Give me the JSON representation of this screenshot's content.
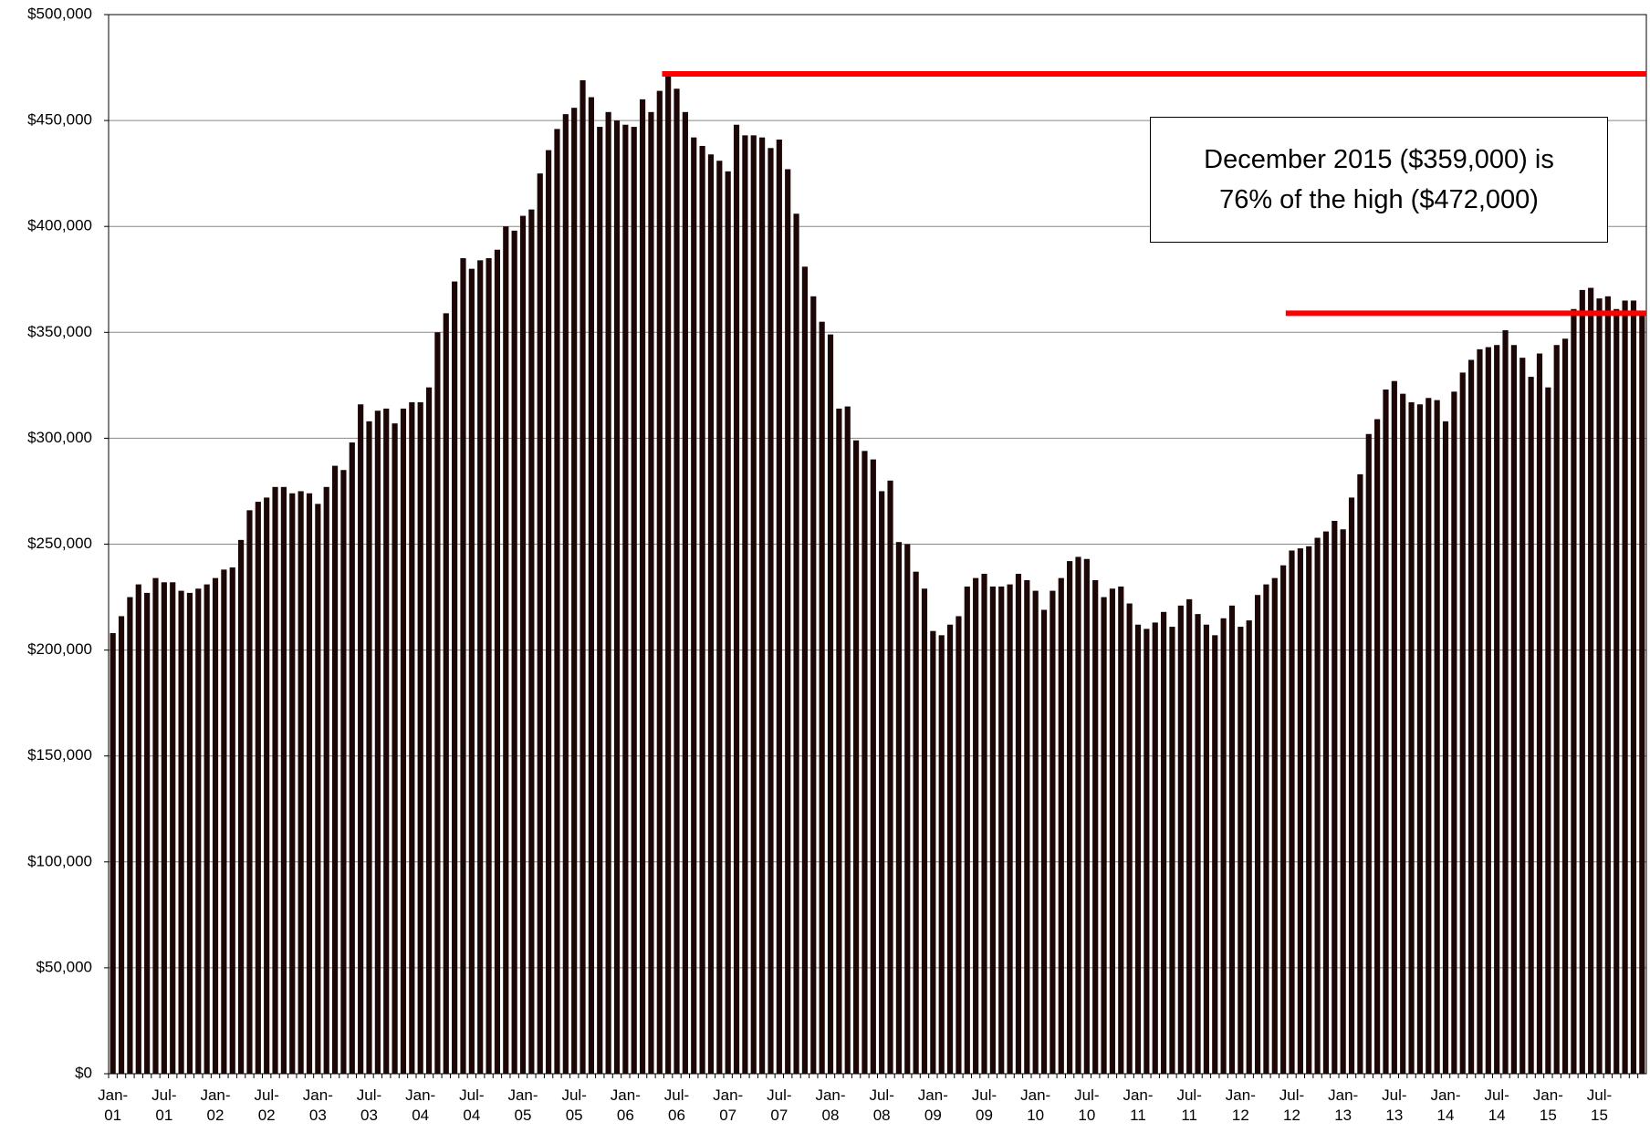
{
  "chart_data": {
    "type": "bar",
    "categories": [
      "Jan-01",
      null,
      null,
      null,
      null,
      null,
      "Jul-01",
      null,
      null,
      null,
      null,
      null,
      "Jan-02",
      null,
      null,
      null,
      null,
      null,
      "Jul-02",
      null,
      null,
      null,
      null,
      null,
      "Jan-03",
      null,
      null,
      null,
      null,
      null,
      "Jul-03",
      null,
      null,
      null,
      null,
      null,
      "Jan-04",
      null,
      null,
      null,
      null,
      null,
      "Jul-04",
      null,
      null,
      null,
      null,
      null,
      "Jan-05",
      null,
      null,
      null,
      null,
      null,
      "Jul-05",
      null,
      null,
      null,
      null,
      null,
      "Jan-06",
      null,
      null,
      null,
      null,
      null,
      "Jul-06",
      null,
      null,
      null,
      null,
      null,
      "Jan-07",
      null,
      null,
      null,
      null,
      null,
      "Jul-07",
      null,
      null,
      null,
      null,
      null,
      "Jan-08",
      null,
      null,
      null,
      null,
      null,
      "Jul-08",
      null,
      null,
      null,
      null,
      null,
      "Jan-09",
      null,
      null,
      null,
      null,
      null,
      "Jul-09",
      null,
      null,
      null,
      null,
      null,
      "Jan-10",
      null,
      null,
      null,
      null,
      null,
      "Jul-10",
      null,
      null,
      null,
      null,
      null,
      "Jan-11",
      null,
      null,
      null,
      null,
      null,
      "Jul-11",
      null,
      null,
      null,
      null,
      null,
      "Jan-12",
      null,
      null,
      null,
      null,
      null,
      "Jul-12",
      null,
      null,
      null,
      null,
      null,
      "Jan-13",
      null,
      null,
      null,
      null,
      null,
      "Jul-13",
      null,
      null,
      null,
      null,
      null,
      "Jan-14",
      null,
      null,
      null,
      null,
      null,
      "Jul-14",
      null,
      null,
      null,
      null,
      null,
      "Jan-15",
      null,
      null,
      null,
      null,
      null,
      "Jul-15",
      null,
      null,
      null,
      null,
      null
    ],
    "values": [
      208000,
      216000,
      225000,
      231000,
      227000,
      234000,
      232000,
      232000,
      228000,
      227000,
      229000,
      231000,
      234000,
      238000,
      239000,
      252000,
      266000,
      270000,
      272000,
      277000,
      277000,
      274000,
      275000,
      274000,
      269000,
      277000,
      287000,
      285000,
      298000,
      316000,
      308000,
      313000,
      314000,
      307000,
      314000,
      317000,
      317000,
      324000,
      350000,
      359000,
      374000,
      385000,
      380000,
      384000,
      385000,
      389000,
      400000,
      398000,
      405000,
      408000,
      425000,
      436000,
      446000,
      453000,
      456000,
      469000,
      461000,
      447000,
      454000,
      450000,
      448000,
      447000,
      460000,
      454000,
      464000,
      472000,
      465000,
      454000,
      442000,
      438000,
      434000,
      431000,
      426000,
      448000,
      443000,
      443000,
      442000,
      437000,
      441000,
      427000,
      406000,
      381000,
      367000,
      355000,
      349000,
      314000,
      315000,
      299000,
      294000,
      290000,
      275000,
      280000,
      251000,
      250000,
      237000,
      229000,
      209000,
      207000,
      212000,
      216000,
      230000,
      234000,
      236000,
      230000,
      230000,
      231000,
      236000,
      233000,
      228000,
      219000,
      228000,
      234000,
      242000,
      244000,
      243000,
      233000,
      225000,
      229000,
      230000,
      222000,
      212000,
      210000,
      213000,
      218000,
      211000,
      221000,
      224000,
      217000,
      212000,
      207000,
      215000,
      221000,
      211000,
      214000,
      226000,
      231000,
      234000,
      240000,
      247000,
      248000,
      249000,
      253000,
      256000,
      261000,
      257000,
      272000,
      283000,
      302000,
      309000,
      323000,
      327000,
      321000,
      317000,
      316000,
      319000,
      318000,
      308000,
      322000,
      331000,
      337000,
      342000,
      343000,
      344000,
      351000,
      344000,
      338000,
      329000,
      340000,
      324000,
      344000,
      347000,
      361000,
      370000,
      371000,
      366000,
      367000,
      361000,
      365000,
      365000,
      359000
    ],
    "color": "#1c0606",
    "ylim": [
      0,
      500000
    ],
    "yticks": [
      {
        "value": 0,
        "label": "$0"
      },
      {
        "value": 50000,
        "label": "$50,000"
      },
      {
        "value": 100000,
        "label": "$100,000"
      },
      {
        "value": 150000,
        "label": "$150,000"
      },
      {
        "value": 200000,
        "label": "$200,000"
      },
      {
        "value": 250000,
        "label": "$250,000"
      },
      {
        "value": 300000,
        "label": "$300,000"
      },
      {
        "value": 350000,
        "label": "$350,000"
      },
      {
        "value": 400000,
        "label": "$400,000"
      },
      {
        "value": 450000,
        "label": "$450,000"
      },
      {
        "value": 500000,
        "label": "$500,000"
      }
    ],
    "grid": true,
    "reference_lines": [
      {
        "value": 472000,
        "color": "#ff0000"
      },
      {
        "value": 359000,
        "color": "#ff0000"
      }
    ],
    "annotation": [
      "December 2015 ($359,000) is",
      "76% of the high ($472,000)"
    ]
  }
}
